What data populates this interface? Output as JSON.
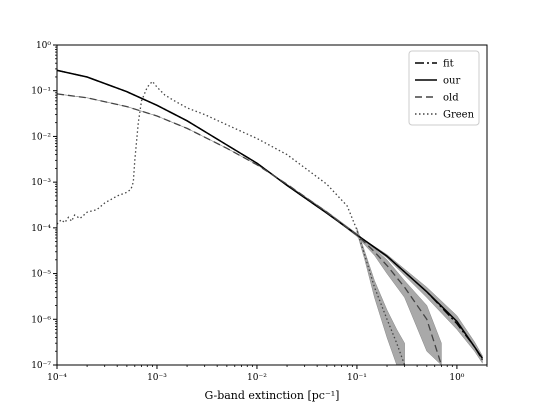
{
  "chart_data": {
    "type": "line",
    "xlabel": "G-band extinction [pc⁻¹]",
    "ylabel": "",
    "xscale": "log",
    "yscale": "log",
    "xlim": [
      0.0001,
      2.0
    ],
    "ylim": [
      1e-07,
      1.0
    ],
    "x_ticks": [
      0.0001,
      0.001,
      0.01,
      0.1,
      1.0
    ],
    "x_tick_labels": [
      "10⁻⁴",
      "10⁻³",
      "10⁻²",
      "10⁻¹",
      "10⁰"
    ],
    "y_ticks": [
      1e-07,
      1e-06,
      1e-05,
      0.0001,
      0.001,
      0.01,
      0.1,
      1.0
    ],
    "y_tick_labels": [
      "10⁻⁷",
      "10⁻⁶",
      "10⁻⁵",
      "10⁻⁴",
      "10⁻³",
      "10⁻²",
      "10⁻¹",
      "10⁰"
    ],
    "grid": false,
    "legend_position": "top-right",
    "series": [
      {
        "name": "fit",
        "style": "dashdot",
        "color": "#000000",
        "x": [
          0.0001,
          0.0002,
          0.0005,
          0.001,
          0.002,
          0.005,
          0.01,
          0.02,
          0.05,
          0.1,
          0.2,
          0.5,
          1.0,
          1.5,
          1.8
        ],
        "y": [
          0.28,
          0.2,
          0.095,
          0.048,
          0.022,
          0.0065,
          0.0026,
          0.00085,
          0.00021,
          7e-05,
          2.4e-05,
          4e-06,
          8e-07,
          2.5e-07,
          1.3e-07
        ]
      },
      {
        "name": "our",
        "style": "solid",
        "color": "#000000",
        "x": [
          0.0001,
          0.0002,
          0.0005,
          0.001,
          0.002,
          0.005,
          0.01,
          0.02,
          0.05,
          0.1,
          0.2,
          0.5,
          1.0,
          1.5,
          1.8
        ],
        "y": [
          0.28,
          0.2,
          0.095,
          0.048,
          0.022,
          0.0065,
          0.0026,
          0.00085,
          0.00021,
          7e-05,
          2.4e-05,
          4e-06,
          9e-07,
          2.5e-07,
          1.4e-07
        ],
        "band_lower": [
          0.28,
          0.2,
          0.095,
          0.048,
          0.022,
          0.0065,
          0.0026,
          0.00085,
          0.00021,
          7e-05,
          2.2e-05,
          3e-06,
          6e-07,
          2e-07,
          1.1e-07
        ],
        "band_upper": [
          0.28,
          0.2,
          0.095,
          0.048,
          0.022,
          0.0065,
          0.0026,
          0.00085,
          0.00021,
          7e-05,
          2.6e-05,
          5e-06,
          1.2e-06,
          3.2e-07,
          1.6e-07
        ]
      },
      {
        "name": "old",
        "style": "dashed",
        "color": "#444444",
        "x": [
          0.0001,
          0.0002,
          0.0005,
          0.001,
          0.002,
          0.005,
          0.01,
          0.02,
          0.05,
          0.1,
          0.15,
          0.2,
          0.3,
          0.5,
          0.7
        ],
        "y": [
          0.085,
          0.07,
          0.045,
          0.028,
          0.015,
          0.0055,
          0.0024,
          0.0009,
          0.00022,
          7e-05,
          3e-05,
          1.5e-05,
          5e-06,
          1e-06,
          1e-07
        ],
        "band_lower": [
          0.085,
          0.07,
          0.045,
          0.028,
          0.015,
          0.0055,
          0.0024,
          0.0009,
          0.00021,
          6.5e-05,
          2.5e-05,
          1e-05,
          3e-06,
          2e-07,
          1e-07
        ],
        "band_upper": [
          0.085,
          0.07,
          0.045,
          0.028,
          0.015,
          0.0055,
          0.0024,
          0.0009,
          0.00023,
          7.5e-05,
          3.5e-05,
          2e-05,
          7e-06,
          2e-06,
          3e-07
        ]
      },
      {
        "name": "Green",
        "style": "dotted",
        "color": "#444444",
        "x": [
          0.0001,
          0.00011,
          0.00012,
          0.00013,
          0.00014,
          0.00015,
          0.00017,
          0.0002,
          0.00025,
          0.0003,
          0.0004,
          0.0005,
          0.00055,
          0.00058,
          0.0006,
          0.00065,
          0.0007,
          0.0008,
          0.0009,
          0.001,
          0.0012,
          0.0015,
          0.002,
          0.003,
          0.005,
          0.01,
          0.02,
          0.05,
          0.08,
          0.1,
          0.12,
          0.15,
          0.2,
          0.25,
          0.3
        ],
        "y": [
          0.00012,
          0.00015,
          0.00013,
          0.00017,
          0.00014,
          0.00019,
          0.00016,
          0.00022,
          0.00025,
          0.00035,
          0.0005,
          0.0006,
          0.0007,
          0.001,
          0.003,
          0.02,
          0.06,
          0.12,
          0.16,
          0.12,
          0.08,
          0.06,
          0.042,
          0.03,
          0.018,
          0.009,
          0.004,
          0.0009,
          0.0003,
          9e-05,
          2.5e-05,
          5e-06,
          1e-06,
          3e-07,
          1e-07
        ],
        "band_lower": [
          null,
          null,
          null,
          null,
          null,
          null,
          null,
          null,
          null,
          null,
          null,
          null,
          null,
          null,
          null,
          null,
          null,
          null,
          null,
          null,
          null,
          null,
          null,
          null,
          null,
          null,
          null,
          null,
          null,
          8e-05,
          2e-05,
          3e-06,
          4e-07,
          1e-07,
          1e-07
        ],
        "band_upper": [
          null,
          null,
          null,
          null,
          null,
          null,
          null,
          null,
          null,
          null,
          null,
          null,
          null,
          null,
          null,
          null,
          null,
          null,
          null,
          null,
          null,
          null,
          null,
          null,
          null,
          null,
          null,
          null,
          null,
          0.0001,
          3e-05,
          7e-06,
          1.6e-06,
          6e-07,
          3e-07
        ]
      }
    ]
  }
}
